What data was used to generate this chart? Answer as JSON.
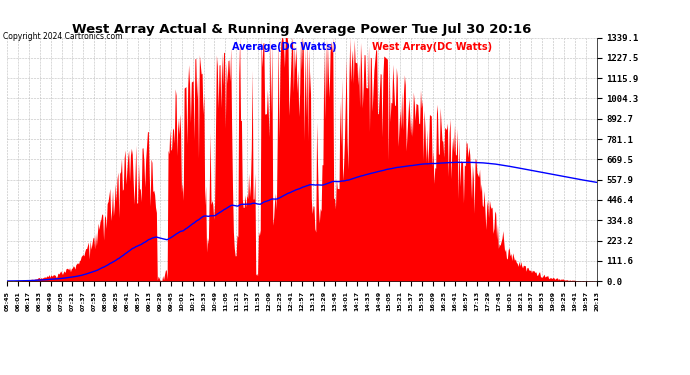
{
  "title": "West Array Actual & Running Average Power Tue Jul 30 20:16",
  "copyright": "Copyright 2024 Cartronics.com",
  "legend_avg": "Average(DC Watts)",
  "legend_west": "West Array(DC Watts)",
  "yticks": [
    0.0,
    111.6,
    223.2,
    334.8,
    446.4,
    557.9,
    669.5,
    781.1,
    892.7,
    1004.3,
    1115.9,
    1227.5,
    1339.1
  ],
  "ymax": 1339.1,
  "xtick_labels": [
    "05:45",
    "06:01",
    "06:17",
    "06:33",
    "06:49",
    "07:05",
    "07:21",
    "07:37",
    "07:53",
    "08:09",
    "08:25",
    "08:41",
    "08:57",
    "09:13",
    "09:29",
    "09:45",
    "10:01",
    "10:17",
    "10:33",
    "10:49",
    "11:05",
    "11:21",
    "11:37",
    "11:53",
    "12:09",
    "12:25",
    "12:41",
    "12:57",
    "13:13",
    "13:29",
    "13:45",
    "14:01",
    "14:17",
    "14:33",
    "14:49",
    "15:05",
    "15:21",
    "15:37",
    "15:53",
    "16:09",
    "16:25",
    "16:41",
    "16:57",
    "17:13",
    "17:29",
    "17:45",
    "18:01",
    "18:21",
    "18:37",
    "18:53",
    "19:09",
    "19:25",
    "19:41",
    "19:57",
    "20:13"
  ],
  "n_xticks": 55,
  "bg_color": "#ffffff",
  "fill_color": "#ff0000",
  "line_color": "#0000ff",
  "grid_color": "#bbbbbb",
  "title_color": "#000000",
  "copyright_color": "#000000",
  "legend_avg_color": "#0000ff",
  "legend_west_color": "#ff0000"
}
